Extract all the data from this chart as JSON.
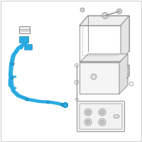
{
  "background_color": "#ffffff",
  "border_color": "#d0d0d0",
  "cable_color": "#29abe2",
  "gray_line": "#999999",
  "gray_fill": "#f0f0f0",
  "gray_dark": "#777777"
}
